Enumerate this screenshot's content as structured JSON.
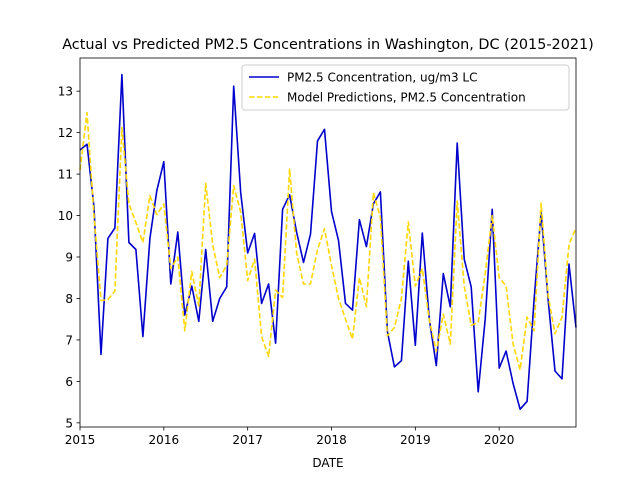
{
  "chart_data": {
    "type": "line",
    "title": "Actual vs Predicted PM2.5 Concentrations in Washington, DC (2015-2021)",
    "xlabel": "DATE",
    "ylabel": "",
    "x_type": "date",
    "x": [
      "2015-01",
      "2015-02",
      "2015-03",
      "2015-04",
      "2015-05",
      "2015-06",
      "2015-07",
      "2015-08",
      "2015-09",
      "2015-10",
      "2015-11",
      "2015-12",
      "2016-01",
      "2016-02",
      "2016-03",
      "2016-04",
      "2016-05",
      "2016-06",
      "2016-07",
      "2016-08",
      "2016-09",
      "2016-10",
      "2016-11",
      "2016-12",
      "2017-01",
      "2017-02",
      "2017-03",
      "2017-04",
      "2017-05",
      "2017-06",
      "2017-07",
      "2017-08",
      "2017-09",
      "2017-10",
      "2017-11",
      "2017-12",
      "2018-01",
      "2018-02",
      "2018-03",
      "2018-04",
      "2018-05",
      "2018-06",
      "2018-07",
      "2018-08",
      "2018-09",
      "2018-10",
      "2018-11",
      "2018-12",
      "2019-01",
      "2019-02",
      "2019-03",
      "2019-04",
      "2019-05",
      "2019-06",
      "2019-07",
      "2019-08",
      "2019-09",
      "2019-10",
      "2019-11",
      "2019-12",
      "2020-01",
      "2020-02",
      "2020-03",
      "2020-04",
      "2020-05",
      "2020-06",
      "2020-07",
      "2020-08",
      "2020-09",
      "2020-10",
      "2020-11",
      "2020-12"
    ],
    "xlim": [
      "2015-01",
      "2020-12"
    ],
    "ylim": [
      4.9,
      13.8
    ],
    "x_ticks": [
      {
        "value": "2015-01",
        "label": "2015"
      },
      {
        "value": "2016-01",
        "label": "2016"
      },
      {
        "value": "2017-01",
        "label": "2017"
      },
      {
        "value": "2018-01",
        "label": "2018"
      },
      {
        "value": "2019-01",
        "label": "2019"
      },
      {
        "value": "2020-01",
        "label": "2020"
      }
    ],
    "y_ticks": [
      5,
      6,
      7,
      8,
      9,
      10,
      11,
      12,
      13
    ],
    "grid": false,
    "legend_position": "upper right",
    "series": [
      {
        "name": "PM2.5 Concentration, ug/m3 LC",
        "color": "#0000cd",
        "style": "solid",
        "values": [
          11.58,
          11.72,
          10.2,
          6.65,
          9.45,
          9.7,
          13.4,
          9.35,
          9.18,
          7.08,
          9.45,
          10.6,
          11.3,
          8.35,
          9.6,
          7.6,
          8.3,
          7.45,
          9.18,
          7.45,
          8.0,
          8.28,
          13.12,
          10.55,
          9.1,
          9.57,
          7.88,
          8.35,
          6.92,
          10.15,
          10.5,
          9.6,
          8.87,
          9.55,
          11.8,
          12.08,
          10.1,
          9.4,
          7.88,
          7.72,
          9.9,
          9.25,
          10.28,
          10.57,
          7.2,
          6.35,
          6.5,
          8.9,
          6.87,
          9.58,
          7.5,
          6.38,
          8.6,
          7.8,
          11.75,
          8.95,
          8.28,
          5.75,
          7.5,
          10.15,
          6.32,
          6.73,
          5.95,
          5.33,
          5.52,
          7.98,
          10.08,
          7.98,
          6.25,
          6.06,
          8.83,
          7.3
        ]
      },
      {
        "name": "Model Predictions, PM2.5 Concentration",
        "color": "#ffd700",
        "style": "dashed",
        "values": [
          11.1,
          12.48,
          10.0,
          7.95,
          7.97,
          8.18,
          12.12,
          10.28,
          9.83,
          9.35,
          10.48,
          10.02,
          10.28,
          8.72,
          9.0,
          7.22,
          8.65,
          7.82,
          10.78,
          9.3,
          8.5,
          8.8,
          10.72,
          10.08,
          8.43,
          8.95,
          7.08,
          6.6,
          8.2,
          8.02,
          11.12,
          9.1,
          8.35,
          8.35,
          9.18,
          9.68,
          8.8,
          8.0,
          7.5,
          7.02,
          8.5,
          7.8,
          10.55,
          9.95,
          7.1,
          7.3,
          8.0,
          9.85,
          8.3,
          8.72,
          7.48,
          6.72,
          7.62,
          6.9,
          10.35,
          8.3,
          7.35,
          7.42,
          8.6,
          10.0,
          8.5,
          8.3,
          6.9,
          6.28,
          7.55,
          7.22,
          10.3,
          8.07,
          7.15,
          7.55,
          9.3,
          9.7
        ]
      }
    ]
  }
}
